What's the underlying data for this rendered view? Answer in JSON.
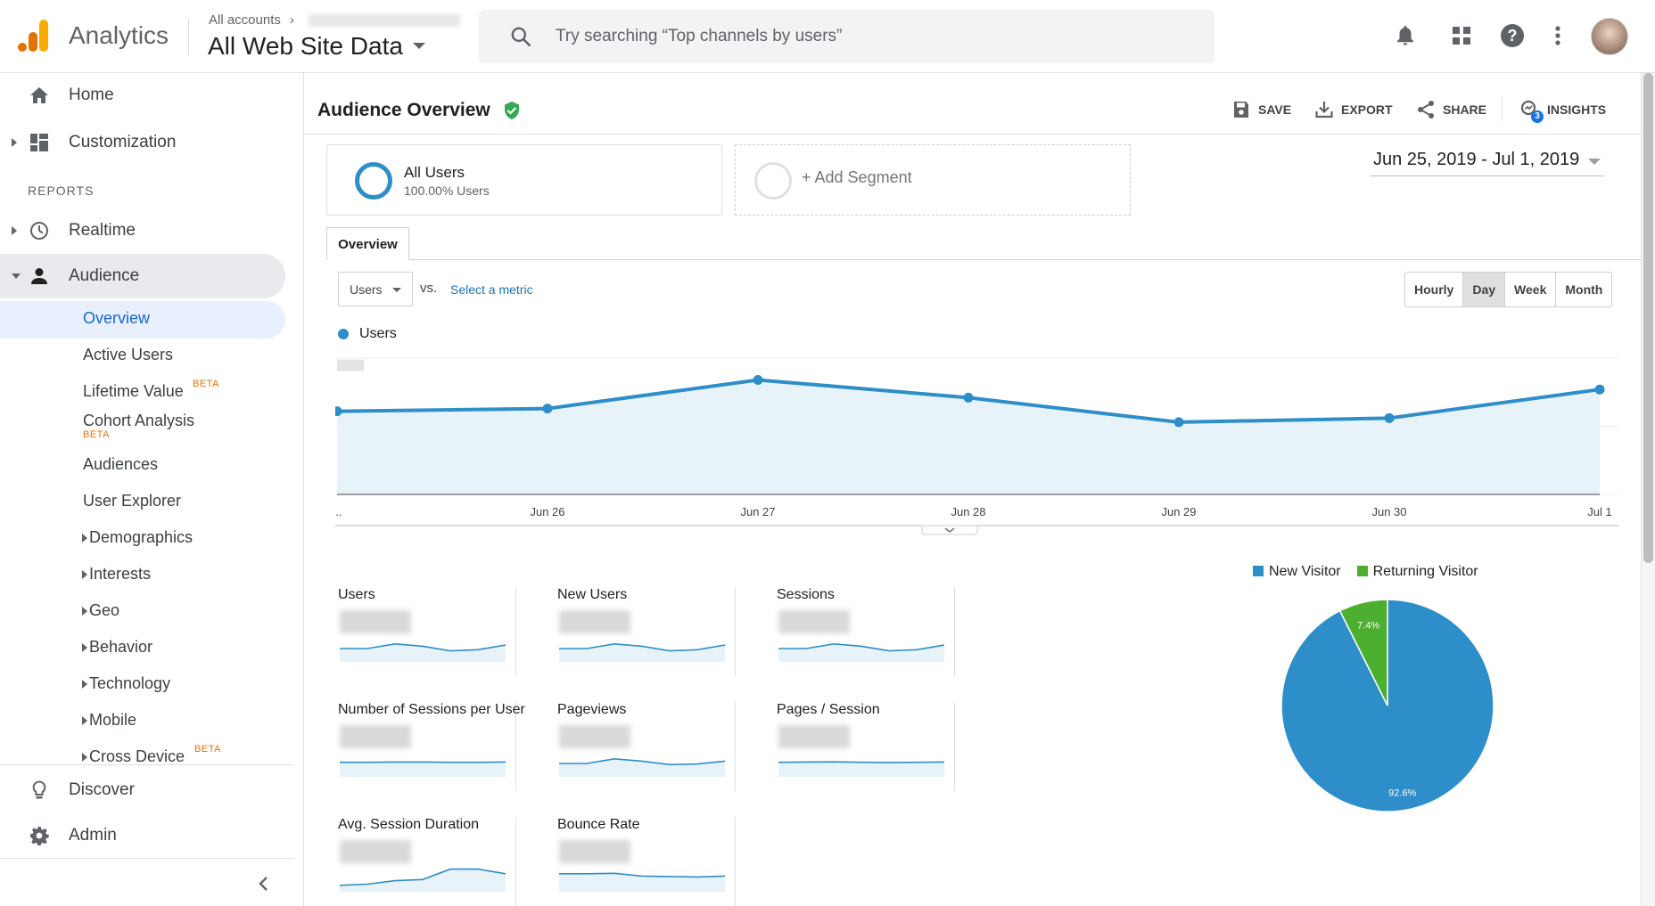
{
  "header": {
    "app_name": "Analytics",
    "account_crumb": "All accounts",
    "view_name": "All Web Site Data",
    "search_placeholder": "Try searching “Top channels by users”"
  },
  "sidebar": {
    "home": "Home",
    "customization": "Customization",
    "reports_header": "REPORTS",
    "realtime": "Realtime",
    "audience": "Audience",
    "audience_items": {
      "overview": "Overview",
      "active_users": "Active Users",
      "lifetime_value": "Lifetime Value",
      "cohort_analysis": "Cohort Analysis",
      "audiences": "Audiences",
      "user_explorer": "User Explorer",
      "demographics": "Demographics",
      "interests": "Interests",
      "geo": "Geo",
      "behavior": "Behavior",
      "technology": "Technology",
      "mobile": "Mobile",
      "cross_device": "Cross Device"
    },
    "beta_label": "BETA",
    "discover": "Discover",
    "admin": "Admin"
  },
  "page": {
    "title": "Audience Overview",
    "actions": {
      "save": "SAVE",
      "export": "EXPORT",
      "share": "SHARE",
      "insights": "INSIGHTS"
    },
    "insights_badge": "3",
    "segment": {
      "name": "All Users",
      "sub": "100.00% Users"
    },
    "add_segment": "+ Add Segment",
    "date_range": "Jun 25, 2019 - Jul 1, 2019",
    "tab": "Overview",
    "metric_select": "Users",
    "vs": "vs.",
    "select_metric": "Select a metric",
    "granularity": [
      "Hourly",
      "Day",
      "Week",
      "Month"
    ],
    "granularity_selected": "Day"
  },
  "chart_data": [
    {
      "type": "area",
      "series": [
        {
          "name": "Users",
          "values": [
            0.61,
            0.63,
            0.84,
            0.71,
            0.53,
            0.56,
            0.77
          ]
        }
      ],
      "x": [
        "...",
        "Jun 26",
        "Jun 27",
        "Jun 28",
        "Jun 29",
        "Jun 30",
        "Jul 1"
      ],
      "ylim": [
        0,
        1
      ],
      "grid": true,
      "color": "#2e8ec9",
      "note_values": "relative (y-axis labels obscured)"
    },
    {
      "type": "pie",
      "categories": [
        "New Visitor",
        "Returning Visitor"
      ],
      "values": [
        92.6,
        7.4
      ],
      "labels": [
        "92.6%",
        "7.4%"
      ],
      "colors": [
        "#2e8ec9",
        "#4caf2f"
      ]
    }
  ],
  "tiles": [
    {
      "name": "Users",
      "spark": [
        0.5,
        0.5,
        0.7,
        0.6,
        0.4,
        0.45,
        0.65
      ]
    },
    {
      "name": "New Users",
      "spark": [
        0.5,
        0.5,
        0.7,
        0.6,
        0.4,
        0.45,
        0.65
      ]
    },
    {
      "name": "Sessions",
      "spark": [
        0.5,
        0.5,
        0.7,
        0.6,
        0.4,
        0.45,
        0.65
      ]
    },
    {
      "name": "Number of Sessions per User",
      "spark": [
        0.55,
        0.55,
        0.56,
        0.56,
        0.55,
        0.55,
        0.56
      ]
    },
    {
      "name": "Pageviews",
      "spark": [
        0.5,
        0.5,
        0.7,
        0.6,
        0.45,
        0.48,
        0.6
      ]
    },
    {
      "name": "Pages / Session",
      "spark": [
        0.55,
        0.56,
        0.57,
        0.55,
        0.54,
        0.55,
        0.56
      ]
    },
    {
      "name": "Avg. Session Duration",
      "spark": [
        0.2,
        0.25,
        0.4,
        0.45,
        0.9,
        0.9,
        0.7
      ]
    },
    {
      "name": "Bounce Rate",
      "spark": [
        0.7,
        0.7,
        0.72,
        0.6,
        0.58,
        0.56,
        0.6
      ]
    }
  ]
}
